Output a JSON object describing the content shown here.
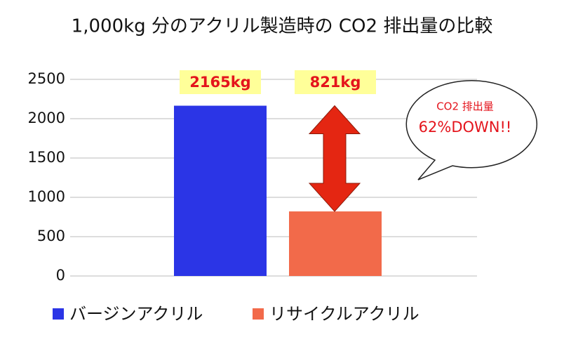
{
  "chart_data": {
    "type": "bar",
    "title": "1,000kg 分のアクリル製造時の CO2 排出量の比較",
    "categories": [
      "バージンアクリル",
      "リサイクルアクリル"
    ],
    "values": [
      2165,
      821
    ],
    "value_labels": [
      "2165kg",
      "821kg"
    ],
    "colors": [
      "#2b35e6",
      "#f26a4a"
    ],
    "ylim": [
      0,
      2500
    ],
    "yticks": [
      0,
      500,
      1000,
      1500,
      2000,
      2500
    ],
    "grid": true,
    "legend": "bottom",
    "annotations": [
      "CO2 排出量",
      "62%DOWN!!"
    ]
  }
}
